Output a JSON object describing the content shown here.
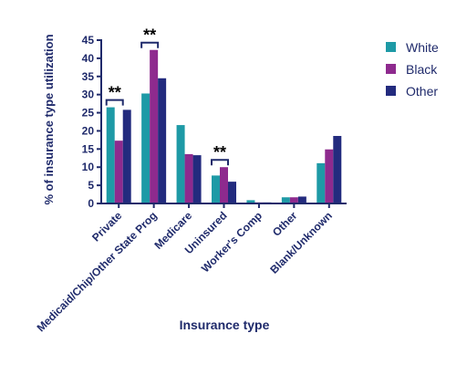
{
  "chart_data": {
    "type": "bar",
    "title": "",
    "xlabel": "Insurance type",
    "ylabel": "% of insurance type utilization",
    "ylim": [
      0,
      45
    ],
    "yticks": [
      0,
      5,
      10,
      15,
      20,
      25,
      30,
      35,
      40,
      45
    ],
    "categories": [
      "Private",
      "Medicaid/Chip/Other State Prog",
      "Medicare",
      "Uninsured",
      "Worker's Comp",
      "Other",
      "Blank/Unknown"
    ],
    "series": [
      {
        "name": "White",
        "color": "#1e9aa6",
        "values": [
          26.5,
          30.3,
          21.6,
          7.7,
          0.9,
          1.7,
          11.1
        ]
      },
      {
        "name": "Black",
        "color": "#8e2a8e",
        "values": [
          17.3,
          42.3,
          13.6,
          10.0,
          0.3,
          1.7,
          14.9
        ]
      },
      {
        "name": "Other",
        "color": "#232b7e",
        "values": [
          25.8,
          34.5,
          13.3,
          6.0,
          0.3,
          1.9,
          18.6
        ]
      }
    ],
    "legend_position": "top-right",
    "grid": false,
    "significance": [
      {
        "category_index": 0,
        "label": "**"
      },
      {
        "category_index": 1,
        "label": "**"
      },
      {
        "category_index": 3,
        "label": "**"
      }
    ]
  }
}
